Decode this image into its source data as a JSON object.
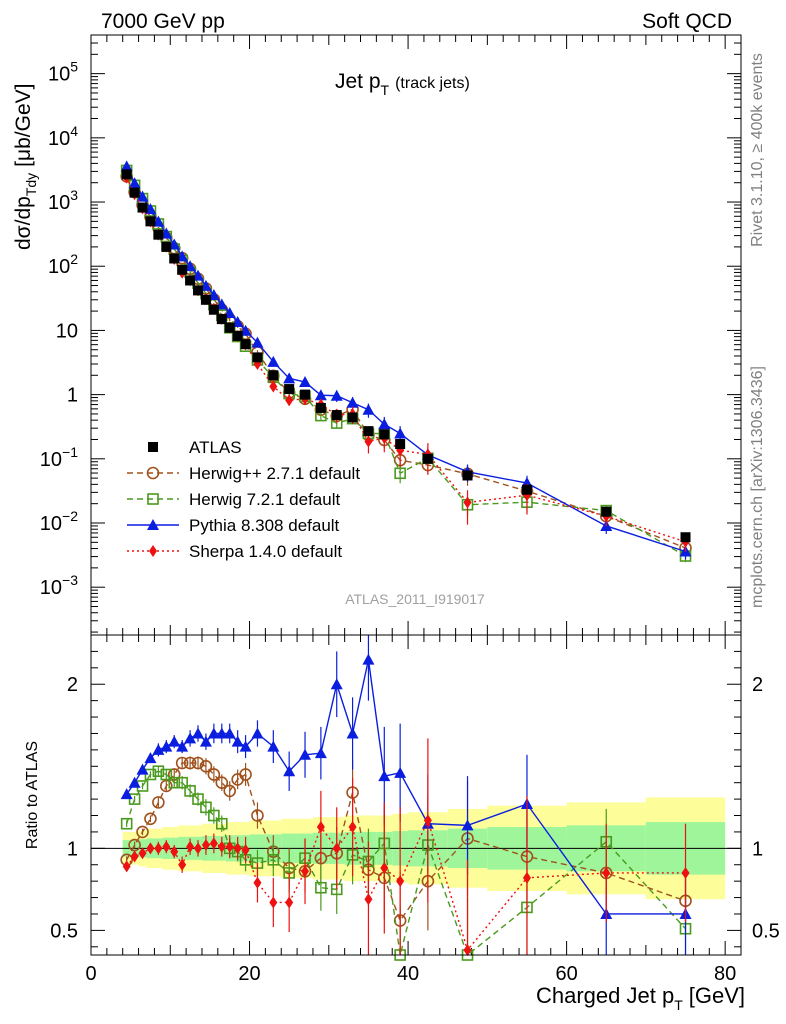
{
  "header": {
    "left": "7000 GeV pp",
    "right": "Soft QCD"
  },
  "side": {
    "rivet": "Rivet 3.1.10, ≥ 400k events",
    "mcplots": "mcplots.cern.ch [arXiv:1306.3436]"
  },
  "colors": {
    "atlas": "#000000",
    "herwigpp": "#a0521d",
    "herwig7": "#4a9a1e",
    "pythia": "#0a1ee0",
    "sherpa": "#ee1111",
    "band_inner": "#9ef59a",
    "band_outer": "#fdfd99"
  },
  "chart_data": {
    "type": "scatter",
    "title_main": "Jet p",
    "title_sub": "T",
    "title_note": "(track jets)",
    "analysis_id": "ATLAS_2011_I919017",
    "xlabel": "Charged Jet p",
    "xlabel_sub": "T",
    "xlabel_unit": "[GeV]",
    "ylabel_main": "dσ/dp",
    "ylabel_sub": "Tdy",
    "ylabel_unit": "[μb/GeV]",
    "ratio_ylabel": "Ratio to ATLAS",
    "xlim": [
      0,
      82
    ],
    "ylim": [
      0.00018,
      400000
    ],
    "ratio_ylim": [
      0.35,
      2.3
    ],
    "x_ticks": [
      "0",
      "20",
      "40",
      "60",
      "80"
    ],
    "y_ticks": [
      {
        "base": "10",
        "exp": "5",
        "value": 100000
      },
      {
        "base": "10",
        "exp": "4",
        "value": 10000
      },
      {
        "base": "10",
        "exp": "3",
        "value": 1000
      },
      {
        "base": "10",
        "exp": "2",
        "value": 100
      },
      {
        "base": "10",
        "exp": "",
        "value": 10
      },
      {
        "base": "1",
        "exp": "",
        "value": 1
      },
      {
        "base": "10",
        "exp": "−1",
        "value": 0.1
      },
      {
        "base": "10",
        "exp": "−2",
        "value": 0.01
      },
      {
        "base": "10",
        "exp": "−3",
        "value": 0.001
      }
    ],
    "ratio_ticks": [
      "0.5",
      "1",
      "2"
    ],
    "legend_position": "middle-left",
    "legend": [
      {
        "key": "atlas",
        "label": "ATLAS"
      },
      {
        "key": "herwigpp",
        "label": "Herwig++ 2.7.1 default"
      },
      {
        "key": "herwig7",
        "label": "Herwig 7.2.1 default"
      },
      {
        "key": "pythia",
        "label": "Pythia 8.308 default"
      },
      {
        "key": "sherpa",
        "label": "Sherpa 1.4.0 default"
      }
    ],
    "x": [
      4.5,
      5.5,
      6.5,
      7.5,
      8.5,
      9.5,
      10.5,
      11.5,
      12.5,
      13.5,
      14.5,
      15.5,
      16.5,
      17.5,
      18.5,
      19.5,
      21,
      23,
      25,
      27,
      29,
      31,
      33,
      35,
      37,
      39,
      42.5,
      47.5,
      55,
      65,
      75
    ],
    "bin_edges": [
      4,
      5,
      6,
      7,
      8,
      9,
      10,
      11,
      12,
      13,
      14,
      15,
      16,
      17,
      18,
      19,
      20,
      22,
      24,
      26,
      28,
      30,
      32,
      34,
      36,
      38,
      40,
      45,
      50,
      60,
      70,
      80
    ],
    "atlas": {
      "values": [
        2700,
        1400,
        820,
        500,
        310,
        200,
        132,
        88,
        60,
        42,
        30,
        21,
        15,
        11,
        8.2,
        6.1,
        3.8,
        2.0,
        1.22,
        1.0,
        0.62,
        0.48,
        0.44,
        0.27,
        0.24,
        0.17,
        0.1,
        0.055,
        0.033,
        0.015,
        0.006
      ],
      "band_inner": [
        0.05,
        0.05,
        0.055,
        0.06,
        0.06,
        0.065,
        0.065,
        0.07,
        0.07,
        0.07,
        0.075,
        0.075,
        0.075,
        0.08,
        0.08,
        0.08,
        0.085,
        0.085,
        0.09,
        0.09,
        0.095,
        0.095,
        0.1,
        0.1,
        0.1,
        0.105,
        0.11,
        0.12,
        0.13,
        0.14,
        0.16
      ],
      "band_outer": [
        0.1,
        0.1,
        0.11,
        0.12,
        0.12,
        0.13,
        0.13,
        0.14,
        0.14,
        0.14,
        0.15,
        0.15,
        0.15,
        0.16,
        0.16,
        0.16,
        0.17,
        0.17,
        0.18,
        0.18,
        0.19,
        0.19,
        0.2,
        0.2,
        0.2,
        0.21,
        0.22,
        0.24,
        0.26,
        0.28,
        0.31
      ]
    },
    "series": [
      {
        "key": "herwigpp",
        "name": "Herwig++ 2.7.1 default",
        "marker": "circle",
        "dash": "6,4",
        "ratio": [
          0.93,
          1.02,
          1.1,
          1.18,
          1.28,
          1.38,
          1.45,
          1.52,
          1.52,
          1.52,
          1.5,
          1.45,
          1.4,
          1.35,
          1.42,
          1.45,
          1.2,
          0.98,
          0.88,
          0.86,
          0.94,
          0.97,
          1.34,
          0.87,
          0.82,
          0.56,
          0.8,
          1.06,
          0.95,
          0.85,
          0.68
        ],
        "err": [
          0.02,
          0.02,
          0.02,
          0.02,
          0.03,
          0.03,
          0.03,
          0.03,
          0.04,
          0.04,
          0.05,
          0.05,
          0.05,
          0.06,
          0.06,
          0.07,
          0.08,
          0.1,
          0.12,
          0.13,
          0.15,
          0.16,
          0.2,
          0.22,
          0.25,
          0.3,
          0.3,
          0.35,
          0.3,
          0.2,
          0.2
        ]
      },
      {
        "key": "herwig7",
        "name": "Herwig 7.2.1 default",
        "marker": "square",
        "dash": "6,4",
        "ratio": [
          1.15,
          1.3,
          1.38,
          1.45,
          1.47,
          1.45,
          1.4,
          1.4,
          1.35,
          1.3,
          1.25,
          1.2,
          1.15,
          1.0,
          0.98,
          0.93,
          0.91,
          0.93,
          0.85,
          0.94,
          0.76,
          0.75,
          0.96,
          0.92,
          1.03,
          0.35,
          1.02,
          0.35,
          0.64,
          1.04,
          0.51
        ],
        "err": [
          0.02,
          0.02,
          0.02,
          0.02,
          0.03,
          0.03,
          0.03,
          0.04,
          0.04,
          0.04,
          0.05,
          0.05,
          0.05,
          0.06,
          0.06,
          0.07,
          0.08,
          0.1,
          0.12,
          0.12,
          0.14,
          0.15,
          0.18,
          0.2,
          0.22,
          0.3,
          0.3,
          0.35,
          0.3,
          0.2,
          0.2
        ]
      },
      {
        "key": "pythia",
        "name": "Pythia 8.308 default",
        "marker": "triangle",
        "dash": "",
        "ratio": [
          1.33,
          1.4,
          1.48,
          1.55,
          1.6,
          1.62,
          1.65,
          1.62,
          1.67,
          1.7,
          1.65,
          1.7,
          1.7,
          1.7,
          1.65,
          1.62,
          1.7,
          1.62,
          1.47,
          1.57,
          1.58,
          2.0,
          1.7,
          2.15,
          1.44,
          1.46,
          1.15,
          1.14,
          1.27,
          0.6,
          0.6
        ],
        "err": [
          0.03,
          0.03,
          0.03,
          0.03,
          0.04,
          0.04,
          0.04,
          0.04,
          0.05,
          0.05,
          0.05,
          0.06,
          0.06,
          0.06,
          0.07,
          0.07,
          0.08,
          0.1,
          0.12,
          0.14,
          0.16,
          0.2,
          0.22,
          0.25,
          0.3,
          0.3,
          0.3,
          0.3,
          0.3,
          0.25,
          0.25
        ]
      },
      {
        "key": "sherpa",
        "name": "Sherpa 1.4.0 default",
        "marker": "diamond",
        "dash": "2,3",
        "ratio": [
          0.89,
          0.95,
          0.97,
          1.0,
          1.0,
          1.01,
          0.98,
          0.9,
          1.01,
          1.0,
          1.02,
          1.03,
          1.01,
          1.01,
          1.0,
          0.99,
          0.79,
          0.67,
          0.67,
          0.86,
          1.13,
          1.0,
          1.13,
          0.69,
          0.88,
          0.8,
          1.17,
          0.38,
          0.82,
          0.85,
          0.85
        ],
        "err": [
          0.03,
          0.03,
          0.03,
          0.03,
          0.04,
          0.04,
          0.04,
          0.05,
          0.05,
          0.05,
          0.06,
          0.06,
          0.06,
          0.07,
          0.07,
          0.08,
          0.12,
          0.15,
          0.18,
          0.2,
          0.22,
          0.25,
          0.3,
          0.35,
          0.4,
          0.45,
          0.5,
          0.55,
          0.5,
          0.3,
          0.3
        ]
      }
    ]
  }
}
